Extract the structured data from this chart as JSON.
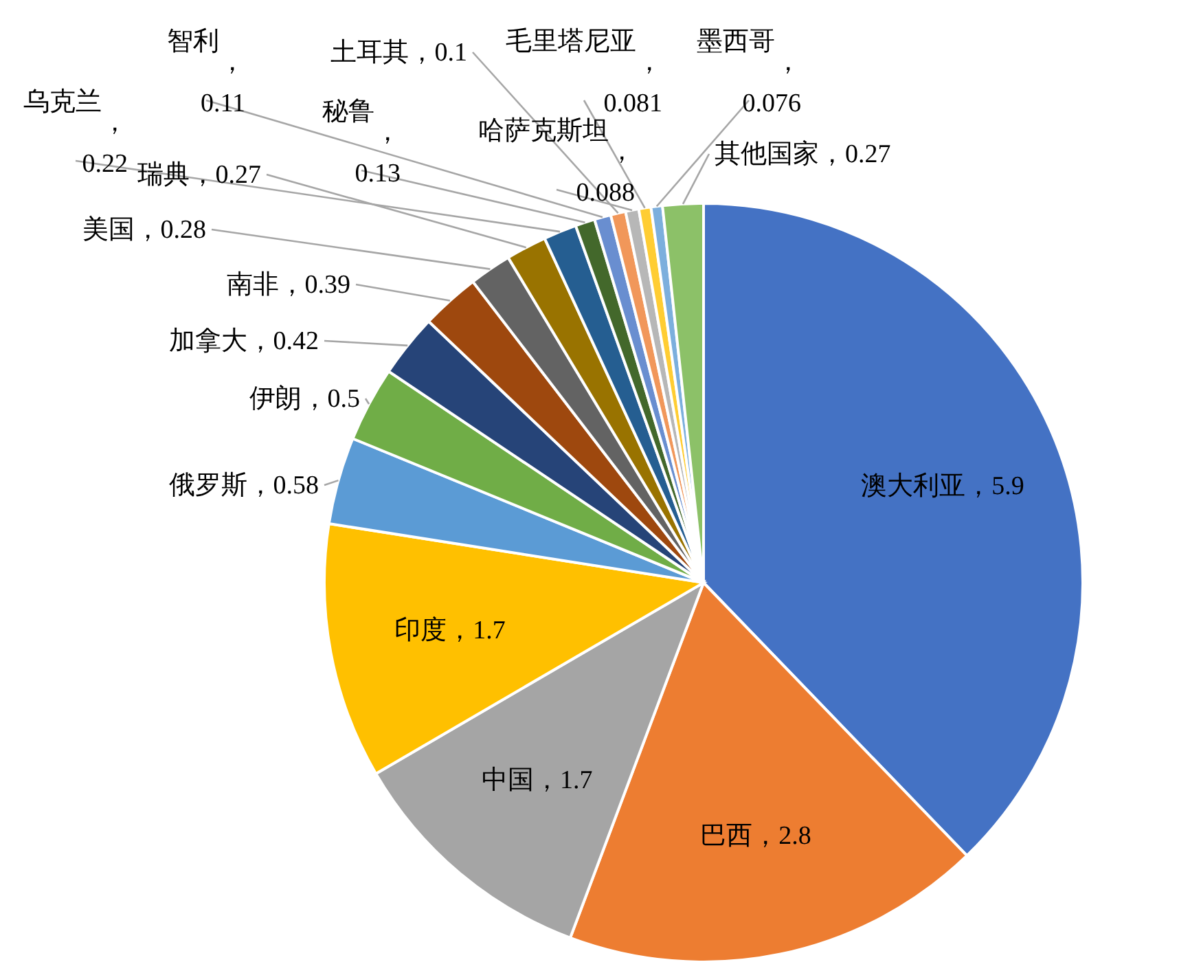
{
  "chart_data": {
    "type": "pie",
    "categories": [
      "澳大利亚",
      "巴西",
      "中国",
      "印度",
      "俄罗斯",
      "伊朗",
      "加拿大",
      "南非",
      "美国",
      "瑞典",
      "乌克兰",
      "秘鲁",
      "智利",
      "土耳其",
      "哈萨克斯坦",
      "毛里塔尼亚",
      "墨西哥",
      "其他国家"
    ],
    "values": [
      5.9,
      2.8,
      1.7,
      1.7,
      0.58,
      0.5,
      0.42,
      0.39,
      0.28,
      0.27,
      0.22,
      0.13,
      0.11,
      0.1,
      0.088,
      0.081,
      0.076,
      0.27
    ],
    "value_labels": [
      "，5.9",
      "，2.8",
      "，1.7",
      "，1.7",
      "，0.58",
      "，0.5",
      "，0.42",
      "，0.39",
      "，0.28",
      "，0.27",
      "，0.22",
      "，0.13",
      "，0.11",
      "，0.1",
      "，0.088",
      "，0.081",
      "，0.076",
      "，0.27"
    ],
    "colors": [
      "#4472c4",
      "#ed7d31",
      "#a5a5a5",
      "#ffc000",
      "#5b9bd5",
      "#70ad47",
      "#264478",
      "#9e480e",
      "#636363",
      "#997300",
      "#255e91",
      "#43682b",
      "#698ed0",
      "#f1975a",
      "#b7b7b7",
      "#ffcd33",
      "#7cafdd",
      "#8cc168"
    ],
    "legend": false
  }
}
